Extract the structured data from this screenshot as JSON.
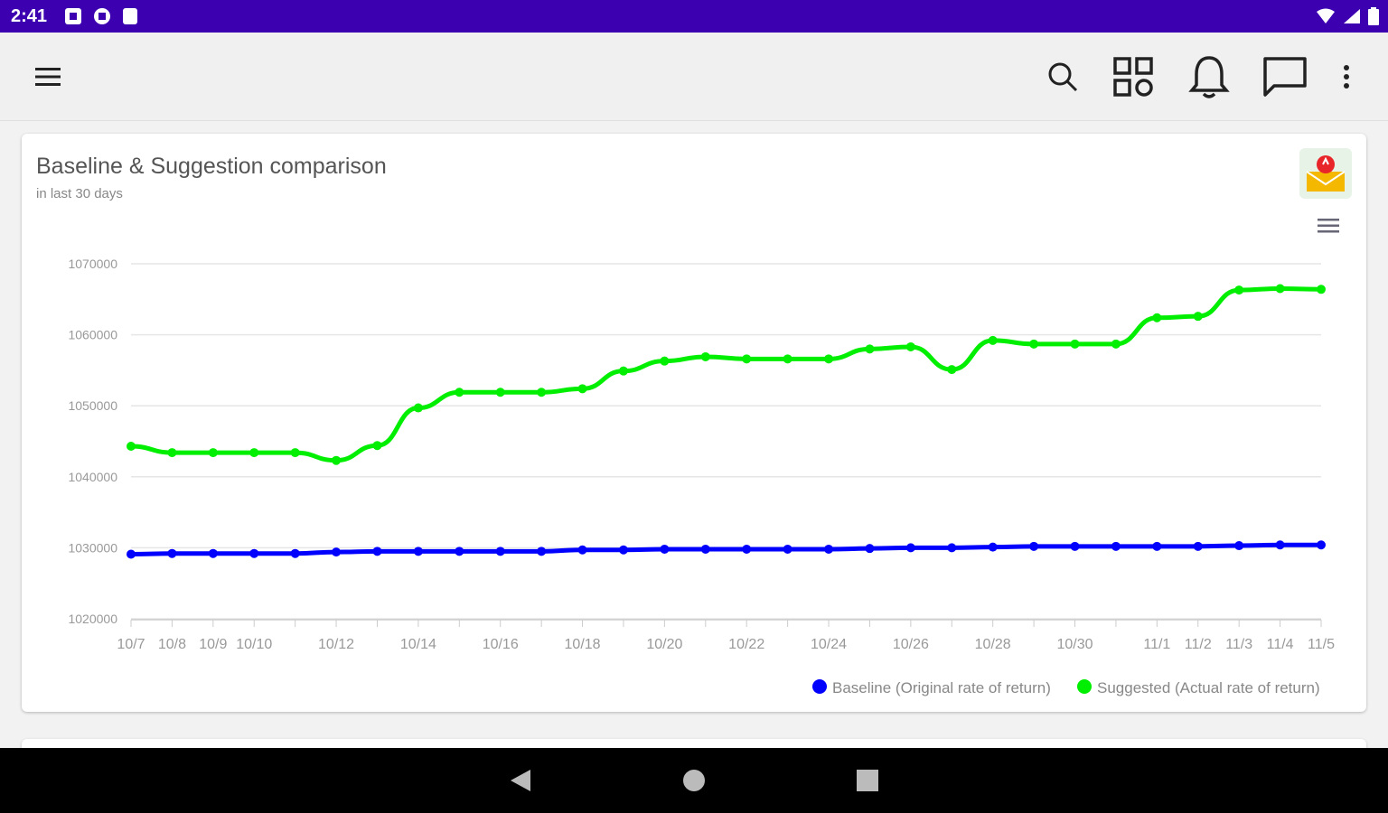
{
  "status_bar": {
    "time": "2:41",
    "icons": [
      "notification-icon",
      "vpn-icon",
      "sd-card-icon"
    ],
    "right_icons": [
      "wifi-icon",
      "signal-icon",
      "battery-icon"
    ]
  },
  "app_bar": {
    "icons": [
      "menu-icon",
      "search-icon",
      "apps-grid-icon",
      "bell-icon",
      "chat-icon",
      "more-vert-icon"
    ]
  },
  "card": {
    "title": "Baseline & Suggestion comparison",
    "subtitle": "in last 30 days"
  },
  "chart_data": {
    "type": "line",
    "categories": [
      "10/7",
      "10/8",
      "10/9",
      "10/10",
      "10/11",
      "10/12",
      "10/13",
      "10/14",
      "10/15",
      "10/16",
      "10/17",
      "10/18",
      "10/19",
      "10/20",
      "10/21",
      "10/22",
      "10/23",
      "10/24",
      "10/25",
      "10/26",
      "10/27",
      "10/28",
      "10/29",
      "10/30",
      "10/31",
      "11/1",
      "11/2",
      "11/3",
      "11/4",
      "11/5"
    ],
    "tick_labels": [
      "10/7",
      "10/8",
      "10/9",
      "10/10",
      "",
      "10/12",
      "",
      "10/14",
      "",
      "10/16",
      "",
      "10/18",
      "",
      "10/20",
      "",
      "10/22",
      "",
      "10/24",
      "",
      "10/26",
      "",
      "10/28",
      "",
      "10/30",
      "",
      "11/1",
      "11/2",
      "11/3",
      "11/4",
      "11/5"
    ],
    "yticks": [
      "1020000",
      "1030000",
      "1040000",
      "1050000",
      "1060000",
      "1070000"
    ],
    "ylim": [
      1020000,
      1070000
    ],
    "series": [
      {
        "name": "Baseline (Original rate of return)",
        "color": "#0000ff",
        "values": [
          1029100,
          1029200,
          1029200,
          1029200,
          1029200,
          1029400,
          1029500,
          1029500,
          1029500,
          1029500,
          1029500,
          1029700,
          1029700,
          1029800,
          1029800,
          1029800,
          1029800,
          1029800,
          1029900,
          1030000,
          1030000,
          1030100,
          1030200,
          1030200,
          1030200,
          1030200,
          1030200,
          1030300,
          1030400,
          1030400
        ]
      },
      {
        "name": "Suggested (Actual rate of return)",
        "color": "#00ee00",
        "values": [
          1044300,
          1043400,
          1043400,
          1043400,
          1043400,
          1042300,
          1044400,
          1049700,
          1051900,
          1051900,
          1051900,
          1052400,
          1054900,
          1056300,
          1056900,
          1056600,
          1056600,
          1056600,
          1058000,
          1058300,
          1055100,
          1059200,
          1058700,
          1058700,
          1058700,
          1062400,
          1062600,
          1066300,
          1066500,
          1066400
        ]
      }
    ],
    "legend_position": "bottom-right",
    "grid": true
  },
  "nav_bar": {
    "icons": [
      "back-icon",
      "home-icon",
      "recents-icon"
    ]
  }
}
